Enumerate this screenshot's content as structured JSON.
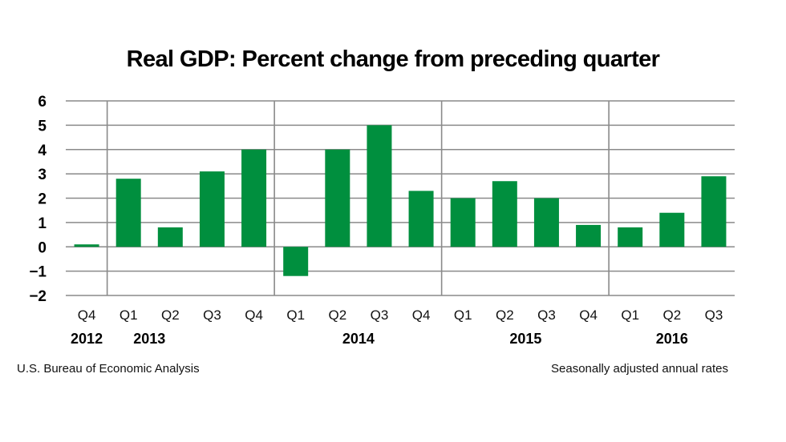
{
  "chart_data": {
    "type": "bar",
    "title": "Real GDP: Percent change from preceding quarter",
    "xlabel": "",
    "ylabel": "",
    "ylim": [
      -2,
      6
    ],
    "yticks": [
      6,
      5,
      4,
      3,
      2,
      1,
      0,
      -1,
      -2
    ],
    "ytick_labels": [
      "6",
      "5",
      "4",
      "3",
      "2",
      "1",
      "0",
      "−1",
      "−2"
    ],
    "grid": true,
    "categories": [
      "Q4",
      "Q1",
      "Q2",
      "Q3",
      "Q4",
      "Q1",
      "Q2",
      "Q3",
      "Q4",
      "Q1",
      "Q2",
      "Q3",
      "Q4",
      "Q1",
      "Q2",
      "Q3"
    ],
    "years": [
      {
        "label": "2012",
        "start": 0,
        "end": 0
      },
      {
        "label": "2013",
        "start": 1,
        "end": 4
      },
      {
        "label": "2014",
        "start": 5,
        "end": 8
      },
      {
        "label": "2015",
        "start": 9,
        "end": 12
      },
      {
        "label": "2016",
        "start": 13,
        "end": 15
      }
    ],
    "series": [
      {
        "name": "Real GDP percent change",
        "color": "#008f3e",
        "values": [
          0.1,
          2.8,
          0.8,
          3.1,
          4.0,
          -1.2,
          4.0,
          5.0,
          2.3,
          2.0,
          2.7,
          2.0,
          0.9,
          0.8,
          1.4,
          2.9
        ]
      }
    ],
    "gridline_color": "#8a8a8a"
  },
  "footer": {
    "source": "U.S. Bureau of Economic Analysis",
    "note": "Seasonally adjusted annual rates"
  }
}
